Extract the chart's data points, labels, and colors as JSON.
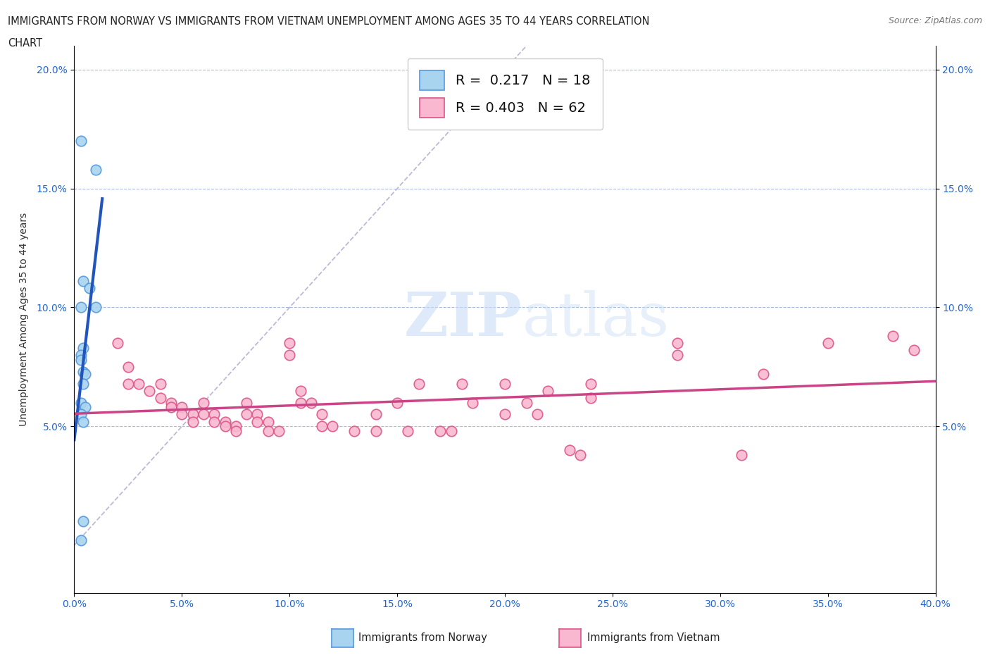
{
  "title_line1": "IMMIGRANTS FROM NORWAY VS IMMIGRANTS FROM VIETNAM UNEMPLOYMENT AMONG AGES 35 TO 44 YEARS CORRELATION",
  "title_line2": "CHART",
  "source_text": "Source: ZipAtlas.com",
  "ylabel": "Unemployment Among Ages 35 to 44 years",
  "xlim": [
    0.0,
    0.4
  ],
  "ylim": [
    -0.02,
    0.21
  ],
  "xtick_vals": [
    0.0,
    0.05,
    0.1,
    0.15,
    0.2,
    0.25,
    0.3,
    0.35,
    0.4
  ],
  "ytick_vals": [
    0.05,
    0.1,
    0.15,
    0.2
  ],
  "norway_color": "#a8d4f0",
  "norway_edge_color": "#5599dd",
  "vietnam_color": "#f9b8d0",
  "vietnam_edge_color": "#dd5588",
  "norway_R": 0.217,
  "norway_N": 18,
  "vietnam_R": 0.403,
  "vietnam_N": 62,
  "norway_trend_color": "#2255bb",
  "vietnam_trend_color": "#cc4488",
  "diagonal_color": "#aaaacc",
  "watermark_color": "#c8ddf5",
  "norway_points": [
    [
      0.003,
      0.17
    ],
    [
      0.01,
      0.158
    ],
    [
      0.004,
      0.111
    ],
    [
      0.007,
      0.108
    ],
    [
      0.003,
      0.1
    ],
    [
      0.01,
      0.1
    ],
    [
      0.004,
      0.083
    ],
    [
      0.003,
      0.08
    ],
    [
      0.003,
      0.078
    ],
    [
      0.004,
      0.073
    ],
    [
      0.005,
      0.072
    ],
    [
      0.004,
      0.068
    ],
    [
      0.003,
      0.06
    ],
    [
      0.005,
      0.058
    ],
    [
      0.003,
      0.055
    ],
    [
      0.004,
      0.052
    ],
    [
      0.004,
      0.01
    ],
    [
      0.003,
      0.002
    ]
  ],
  "vietnam_points": [
    [
      0.02,
      0.085
    ],
    [
      0.025,
      0.075
    ],
    [
      0.025,
      0.068
    ],
    [
      0.03,
      0.068
    ],
    [
      0.035,
      0.065
    ],
    [
      0.04,
      0.068
    ],
    [
      0.04,
      0.062
    ],
    [
      0.045,
      0.06
    ],
    [
      0.045,
      0.058
    ],
    [
      0.05,
      0.058
    ],
    [
      0.05,
      0.055
    ],
    [
      0.055,
      0.055
    ],
    [
      0.055,
      0.052
    ],
    [
      0.06,
      0.06
    ],
    [
      0.06,
      0.055
    ],
    [
      0.065,
      0.055
    ],
    [
      0.065,
      0.052
    ],
    [
      0.07,
      0.052
    ],
    [
      0.07,
      0.05
    ],
    [
      0.075,
      0.05
    ],
    [
      0.075,
      0.048
    ],
    [
      0.08,
      0.06
    ],
    [
      0.08,
      0.055
    ],
    [
      0.085,
      0.055
    ],
    [
      0.085,
      0.052
    ],
    [
      0.09,
      0.052
    ],
    [
      0.09,
      0.048
    ],
    [
      0.095,
      0.048
    ],
    [
      0.1,
      0.085
    ],
    [
      0.1,
      0.08
    ],
    [
      0.105,
      0.065
    ],
    [
      0.105,
      0.06
    ],
    [
      0.11,
      0.06
    ],
    [
      0.115,
      0.055
    ],
    [
      0.115,
      0.05
    ],
    [
      0.12,
      0.05
    ],
    [
      0.13,
      0.048
    ],
    [
      0.14,
      0.055
    ],
    [
      0.14,
      0.048
    ],
    [
      0.15,
      0.06
    ],
    [
      0.155,
      0.048
    ],
    [
      0.16,
      0.068
    ],
    [
      0.17,
      0.048
    ],
    [
      0.175,
      0.048
    ],
    [
      0.18,
      0.068
    ],
    [
      0.185,
      0.06
    ],
    [
      0.2,
      0.068
    ],
    [
      0.2,
      0.055
    ],
    [
      0.21,
      0.06
    ],
    [
      0.215,
      0.055
    ],
    [
      0.22,
      0.065
    ],
    [
      0.23,
      0.04
    ],
    [
      0.235,
      0.038
    ],
    [
      0.24,
      0.068
    ],
    [
      0.24,
      0.062
    ],
    [
      0.28,
      0.085
    ],
    [
      0.28,
      0.08
    ],
    [
      0.31,
      0.038
    ],
    [
      0.32,
      0.072
    ],
    [
      0.35,
      0.085
    ],
    [
      0.38,
      0.088
    ],
    [
      0.39,
      0.082
    ]
  ]
}
